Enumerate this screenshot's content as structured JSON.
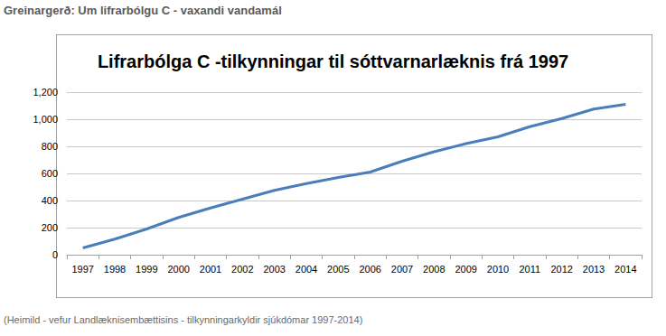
{
  "header": "Greinargerð: Um lifrarbólgu C - vaxandi vandamál",
  "source": "(Heimild - vefur Landlæknisembættisins - tilkynningarkyldir sjúkdómar 1997-2014)",
  "chart_data": {
    "type": "line",
    "title": "Lifrarbólga C -tilkynningar til sóttvarnarlæknis frá 1997",
    "categories": [
      "1997",
      "1998",
      "1999",
      "2000",
      "2001",
      "2002",
      "2003",
      "2004",
      "2005",
      "2006",
      "2007",
      "2008",
      "2009",
      "2010",
      "2011",
      "2012",
      "2013",
      "2014"
    ],
    "values": [
      50,
      115,
      190,
      275,
      345,
      410,
      475,
      525,
      570,
      610,
      690,
      760,
      820,
      870,
      945,
      1005,
      1075,
      1110
    ],
    "color": "#4a7ebb",
    "ylim": [
      0,
      1200
    ],
    "yticks": [
      0,
      200,
      400,
      600,
      800,
      1000,
      1200
    ],
    "grid": true
  }
}
